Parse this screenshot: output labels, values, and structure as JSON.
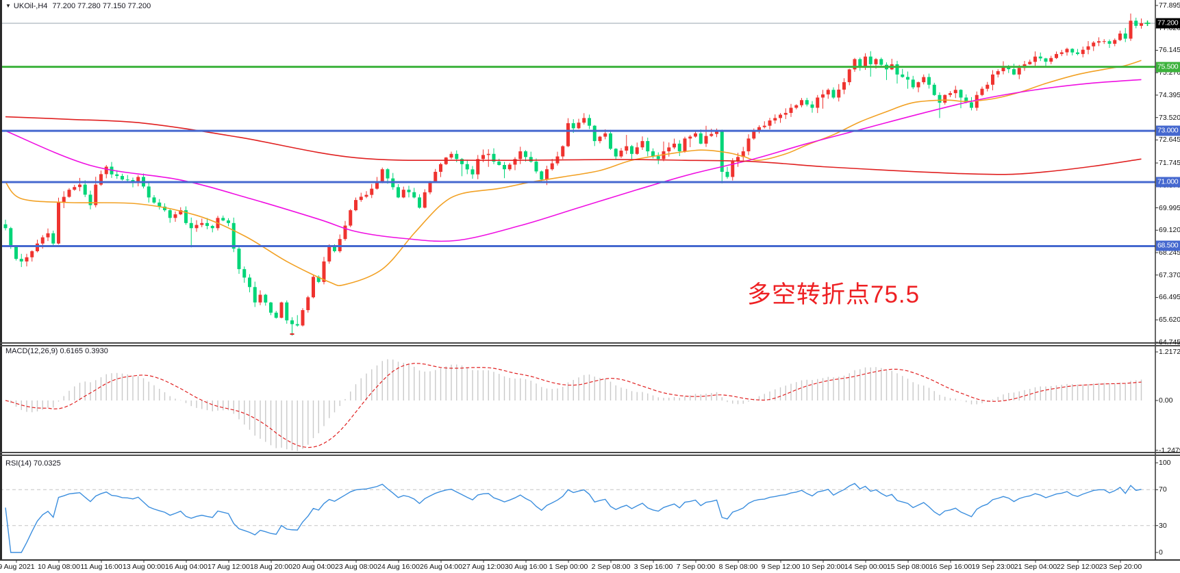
{
  "window": {
    "title_symbol": "UKOil-,H4",
    "title_ohlc": "77.200 77.280 77.150 77.200",
    "collapse_icon": "▼"
  },
  "annotation": {
    "text": "多空转折点75.5",
    "color": "#ee2023"
  },
  "chart_data": {
    "type": "candlestick",
    "symbol": "UKOil-",
    "timeframe": "H4",
    "title": "UKOil-,H4 77.200 77.280 77.150 77.200",
    "last_quote": {
      "open": 77.2,
      "high": 77.28,
      "low": 77.15,
      "close": 77.2
    },
    "price_axis": {
      "labels": [
        "77.895",
        "77.020",
        "76.145",
        "75.270",
        "74.395",
        "73.520",
        "72.645",
        "71.745",
        "70.870",
        "69.995",
        "69.120",
        "68.245",
        "67.370",
        "66.495",
        "65.620",
        "64.745"
      ]
    },
    "current_price": {
      "value": 77.2,
      "label": "77.200",
      "line_color": "#97a3ad",
      "box_color": "#000000"
    },
    "levels": [
      {
        "price": 75.5,
        "label": "75.500",
        "color": "#3cb23c"
      },
      {
        "price": 73.0,
        "label": "73.000",
        "color": "#4568cf"
      },
      {
        "price": 71.0,
        "label": "71.000",
        "color": "#4568cf"
      },
      {
        "price": 68.5,
        "label": "68.500",
        "color": "#4568cf"
      }
    ],
    "time_axis": [
      "9 Aug 2021",
      "10 Aug 08:00",
      "11 Aug 16:00",
      "13 Aug 00:00",
      "16 Aug 04:00",
      "17 Aug 12:00",
      "18 Aug 20:00",
      "20 Aug 04:00",
      "23 Aug 08:00",
      "24 Aug 16:00",
      "26 Aug 04:00",
      "27 Aug 12:00",
      "30 Aug 16:00",
      "1 Sep 00:00",
      "2 Sep 08:00",
      "3 Sep 16:00",
      "7 Sep 00:00",
      "8 Sep 08:00",
      "9 Sep 12:00",
      "10 Sep 20:00",
      "14 Sep 00:00",
      "15 Sep 08:00",
      "16 Sep 16:00",
      "19 Sep 23:00",
      "21 Sep 04:00",
      "22 Sep 12:00",
      "23 Sep 20:00"
    ],
    "candles": {
      "count": 215,
      "keyframes": [
        [
          0,
          69.2
        ],
        [
          1,
          68.5
        ],
        [
          2,
          68.0
        ],
        [
          3,
          67.9
        ],
        [
          5,
          68.3
        ],
        [
          6,
          68.6
        ],
        [
          8,
          69.0
        ],
        [
          9,
          68.6
        ],
        [
          10,
          70.2
        ],
        [
          12,
          70.7
        ],
        [
          14,
          70.9
        ],
        [
          16,
          70.1
        ],
        [
          17,
          70.9
        ],
        [
          19,
          71.6
        ],
        [
          20,
          71.3
        ],
        [
          22,
          71.1
        ],
        [
          24,
          71.0
        ],
        [
          25,
          71.2
        ],
        [
          27,
          70.4
        ],
        [
          28,
          70.2
        ],
        [
          30,
          69.9
        ],
        [
          31,
          69.6
        ],
        [
          33,
          69.9
        ],
        [
          34,
          69.4
        ],
        [
          35,
          69.2
        ],
        [
          37,
          69.4
        ],
        [
          39,
          69.2
        ],
        [
          40,
          69.6
        ],
        [
          42,
          69.4
        ],
        [
          43,
          68.4
        ],
        [
          44,
          67.6
        ],
        [
          46,
          66.9
        ],
        [
          47,
          66.3
        ],
        [
          48,
          66.6
        ],
        [
          50,
          65.9
        ],
        [
          51,
          65.7
        ],
        [
          52,
          66.3
        ],
        [
          53,
          65.6
        ],
        [
          55,
          65.4
        ],
        [
          56,
          66.0
        ],
        [
          57,
          66.5
        ],
        [
          58,
          67.3
        ],
        [
          59,
          67.1
        ],
        [
          60,
          67.9
        ],
        [
          61,
          68.5
        ],
        [
          62,
          68.3
        ],
        [
          64,
          69.3
        ],
        [
          65,
          69.9
        ],
        [
          66,
          70.3
        ],
        [
          68,
          70.5
        ],
        [
          70,
          71.0
        ],
        [
          71,
          71.5
        ],
        [
          73,
          70.8
        ],
        [
          74,
          70.4
        ],
        [
          75,
          70.7
        ],
        [
          77,
          70.4
        ],
        [
          78,
          70.0
        ],
        [
          79,
          70.6
        ],
        [
          80,
          71.0
        ],
        [
          82,
          71.7
        ],
        [
          84,
          72.1
        ],
        [
          85,
          71.9
        ],
        [
          86,
          71.7
        ],
        [
          88,
          71.3
        ],
        [
          89,
          71.9
        ],
        [
          91,
          72.1
        ],
        [
          92,
          71.8
        ],
        [
          94,
          71.5
        ],
        [
          96,
          71.9
        ],
        [
          97,
          72.2
        ],
        [
          99,
          71.8
        ],
        [
          101,
          71.1
        ],
        [
          102,
          71.5
        ],
        [
          104,
          72.0
        ],
        [
          105,
          72.4
        ],
        [
          106,
          73.3
        ],
        [
          107,
          73.1
        ],
        [
          109,
          73.5
        ],
        [
          110,
          73.2
        ],
        [
          111,
          72.6
        ],
        [
          113,
          72.9
        ],
        [
          114,
          72.3
        ],
        [
          115,
          72.0
        ],
        [
          117,
          72.4
        ],
        [
          118,
          72.1
        ],
        [
          120,
          72.6
        ],
        [
          121,
          72.2
        ],
        [
          123,
          71.9
        ],
        [
          124,
          72.2
        ],
        [
          126,
          72.5
        ],
        [
          127,
          72.2
        ],
        [
          128,
          72.7
        ],
        [
          130,
          72.9
        ],
        [
          131,
          72.5
        ],
        [
          132,
          72.8
        ],
        [
          134,
          73.0
        ],
        [
          135,
          71.4
        ],
        [
          136,
          71.2
        ],
        [
          137,
          71.8
        ],
        [
          139,
          72.2
        ],
        [
          140,
          72.7
        ],
        [
          141,
          73.0
        ],
        [
          143,
          73.2
        ],
        [
          145,
          73.5
        ],
        [
          147,
          73.7
        ],
        [
          149,
          74.0
        ],
        [
          150,
          74.2
        ],
        [
          152,
          73.9
        ],
        [
          153,
          74.3
        ],
        [
          155,
          74.6
        ],
        [
          156,
          74.3
        ],
        [
          158,
          74.9
        ],
        [
          159,
          75.4
        ],
        [
          160,
          75.8
        ],
        [
          161,
          75.5
        ],
        [
          162,
          75.9
        ],
        [
          163,
          75.6
        ],
        [
          164,
          75.8
        ],
        [
          166,
          75.4
        ],
        [
          167,
          75.6
        ],
        [
          168,
          75.2
        ],
        [
          170,
          75.0
        ],
        [
          171,
          74.7
        ],
        [
          173,
          75.1
        ],
        [
          174,
          74.8
        ],
        [
          176,
          74.1
        ],
        [
          177,
          74.4
        ],
        [
          179,
          74.6
        ],
        [
          180,
          74.3
        ],
        [
          182,
          73.9
        ],
        [
          183,
          74.4
        ],
        [
          185,
          74.8
        ],
        [
          186,
          75.2
        ],
        [
          188,
          75.5
        ],
        [
          190,
          75.2
        ],
        [
          192,
          75.6
        ],
        [
          194,
          75.9
        ],
        [
          196,
          75.7
        ],
        [
          198,
          76.0
        ],
        [
          200,
          76.2
        ],
        [
          202,
          76.0
        ],
        [
          204,
          76.3
        ],
        [
          206,
          76.5
        ],
        [
          208,
          76.4
        ],
        [
          210,
          76.8
        ],
        [
          211,
          76.6
        ],
        [
          212,
          77.3
        ],
        [
          213,
          77.1
        ],
        [
          214,
          77.2
        ]
      ],
      "wick_overrides": [
        [
          35,
          "low",
          68.45
        ],
        [
          54,
          "low",
          65.0
        ],
        [
          135,
          "low",
          70.95
        ],
        [
          176,
          "low",
          73.5
        ],
        [
          212,
          "high",
          77.58
        ]
      ]
    },
    "moving_averages": [
      {
        "name": "ma-fast-orange",
        "color": "#f2a124",
        "points": [
          [
            0,
            71.0
          ],
          [
            3,
            70.35
          ],
          [
            12,
            70.2
          ],
          [
            25,
            70.15
          ],
          [
            36,
            69.7
          ],
          [
            45,
            68.9
          ],
          [
            53,
            67.9
          ],
          [
            61,
            67.1
          ],
          [
            64,
            67.0
          ],
          [
            71,
            67.6
          ],
          [
            77,
            69.0
          ],
          [
            82,
            70.1
          ],
          [
            86,
            70.55
          ],
          [
            93,
            70.75
          ],
          [
            99,
            71.0
          ],
          [
            105,
            71.2
          ],
          [
            112,
            71.45
          ],
          [
            118,
            71.85
          ],
          [
            125,
            72.1
          ],
          [
            131,
            72.25
          ],
          [
            136,
            72.15
          ],
          [
            139,
            72.0
          ],
          [
            142,
            71.85
          ],
          [
            147,
            72.1
          ],
          [
            151,
            72.45
          ],
          [
            156,
            72.85
          ],
          [
            161,
            73.35
          ],
          [
            166,
            73.75
          ],
          [
            171,
            74.1
          ],
          [
            177,
            74.2
          ],
          [
            181,
            74.15
          ],
          [
            186,
            74.25
          ],
          [
            191,
            74.5
          ],
          [
            196,
            74.85
          ],
          [
            202,
            75.2
          ],
          [
            207,
            75.4
          ],
          [
            211,
            75.55
          ],
          [
            214,
            75.75
          ]
        ]
      },
      {
        "name": "ma-mid-magenta",
        "color": "#ef0fe2",
        "points": [
          [
            0,
            73.0
          ],
          [
            16,
            71.65
          ],
          [
            33,
            71.08
          ],
          [
            46,
            70.36
          ],
          [
            59,
            69.55
          ],
          [
            66,
            69.07
          ],
          [
            75,
            68.8
          ],
          [
            85,
            68.72
          ],
          [
            97,
            69.3
          ],
          [
            108,
            70.0
          ],
          [
            119,
            70.7
          ],
          [
            129,
            71.3
          ],
          [
            141,
            71.9
          ],
          [
            151,
            72.5
          ],
          [
            162,
            73.1
          ],
          [
            173,
            73.7
          ],
          [
            183,
            74.2
          ],
          [
            194,
            74.6
          ],
          [
            204,
            74.85
          ],
          [
            214,
            75.0
          ]
        ]
      },
      {
        "name": "ma-slow-red",
        "color": "#e02020",
        "points": [
          [
            0,
            73.55
          ],
          [
            12,
            73.45
          ],
          [
            26,
            73.3
          ],
          [
            44,
            72.75
          ],
          [
            66,
            71.95
          ],
          [
            89,
            71.85
          ],
          [
            115,
            71.88
          ],
          [
            128,
            71.85
          ],
          [
            141,
            71.8
          ],
          [
            154,
            71.6
          ],
          [
            167,
            71.45
          ],
          [
            180,
            71.33
          ],
          [
            189,
            71.3
          ],
          [
            196,
            71.4
          ],
          [
            205,
            71.62
          ],
          [
            214,
            71.9
          ]
        ]
      }
    ],
    "macd": {
      "label": "MACD(12,26,9)",
      "values_text": "0.6165 0.3930",
      "fast": 12,
      "slow": 26,
      "signal": 9,
      "axis_labels": [
        {
          "v": 1.2172,
          "label": "1.2172"
        },
        {
          "v": 0,
          "label": "0.00"
        },
        {
          "v": -1.2479,
          "label": "-1.2479"
        }
      ],
      "histogram_color": "#c9c9c9",
      "signal_color": "#e02020"
    },
    "rsi": {
      "label": "RSI(14)",
      "value_text": "70.0325",
      "period": 14,
      "axis_labels": [
        {
          "v": 100,
          "label": "100"
        },
        {
          "v": 70,
          "label": "70"
        },
        {
          "v": 30,
          "label": "30"
        },
        {
          "v": 0,
          "label": "0"
        }
      ],
      "levels": [
        70,
        30
      ],
      "line_color": "#3b8ede",
      "level_color": "#c3c3c3"
    },
    "colors": {
      "bull": "#ef332f",
      "bear": "#00d578",
      "marker_cross": "#00cc55",
      "low_marker": "#e02020"
    }
  }
}
